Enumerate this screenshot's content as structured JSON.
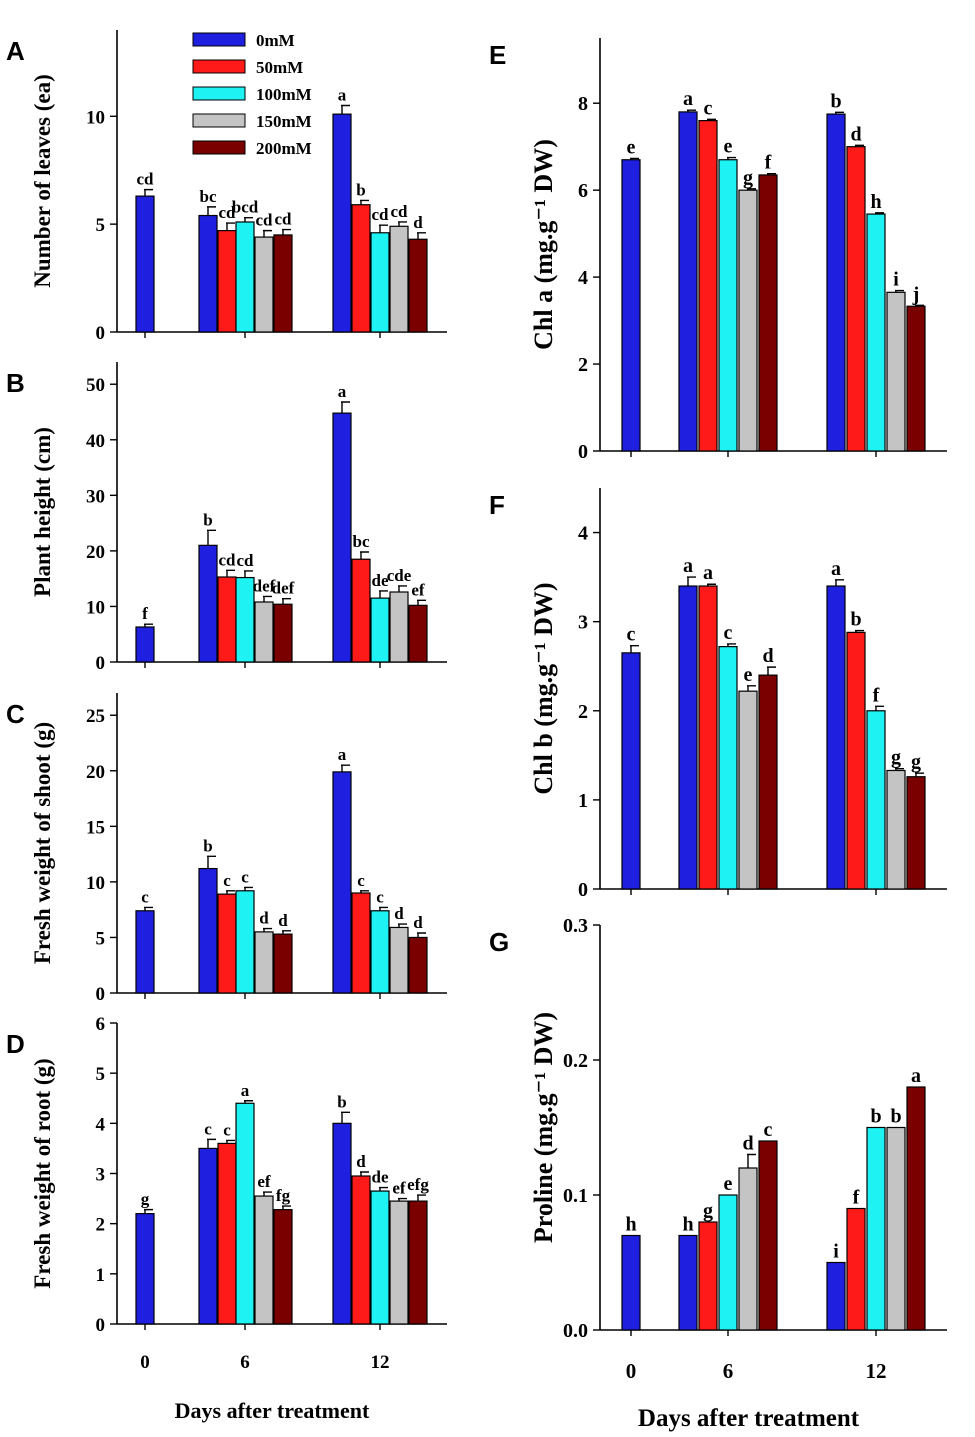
{
  "figure": {
    "series_colors": [
      "#1f1fe0",
      "#ff1a1a",
      "#1ef2f2",
      "#c4c4c4",
      "#7a0000"
    ],
    "legend": [
      "0mM",
      "50mM",
      "100mM",
      "150mM",
      "200mM"
    ]
  },
  "chart_data": [
    {
      "panel": "A",
      "type": "bar",
      "ylabel": "Number of leaves (ea)",
      "xlabel": "",
      "ylim": [
        0,
        14
      ],
      "yticks": [
        0,
        5,
        10
      ],
      "categories": [
        "0",
        "6",
        "12"
      ],
      "series": [
        {
          "name": "0mM",
          "values": [
            6.3,
            5.4,
            10.1
          ],
          "errors": [
            0.3,
            0.4,
            0.4
          ],
          "letters": [
            "cd",
            "bc",
            "a"
          ]
        },
        {
          "name": "50mM",
          "values": [
            null,
            4.7,
            5.9
          ],
          "errors": [
            null,
            0.35,
            0.2
          ],
          "letters": [
            null,
            "cd",
            "b"
          ]
        },
        {
          "name": "100mM",
          "values": [
            null,
            5.1,
            4.6
          ],
          "errors": [
            null,
            0.2,
            0.35
          ],
          "letters": [
            null,
            "bcd",
            "cd"
          ]
        },
        {
          "name": "150mM",
          "values": [
            null,
            4.4,
            4.9
          ],
          "errors": [
            null,
            0.3,
            0.2
          ],
          "letters": [
            null,
            "cd",
            "cd"
          ]
        },
        {
          "name": "200mM",
          "values": [
            null,
            4.5,
            4.3
          ],
          "errors": [
            null,
            0.25,
            0.3
          ],
          "letters": [
            null,
            "cd",
            "d"
          ]
        }
      ]
    },
    {
      "panel": "B",
      "type": "bar",
      "ylabel": "Plant height (cm)",
      "xlabel": "",
      "ylim": [
        0,
        54
      ],
      "yticks": [
        0,
        10,
        20,
        30,
        40,
        50
      ],
      "categories": [
        "0",
        "6",
        "12"
      ],
      "series": [
        {
          "name": "0mM",
          "values": [
            6.3,
            21.0,
            44.8
          ],
          "errors": [
            0.5,
            2.7,
            2.0
          ],
          "letters": [
            "f",
            "b",
            "a"
          ]
        },
        {
          "name": "50mM",
          "values": [
            null,
            15.3,
            18.5
          ],
          "errors": [
            null,
            1.2,
            1.3
          ],
          "letters": [
            null,
            "cd",
            "bc"
          ]
        },
        {
          "name": "100mM",
          "values": [
            null,
            15.2,
            11.5
          ],
          "errors": [
            null,
            1.2,
            1.3
          ],
          "letters": [
            null,
            "cd",
            "de"
          ]
        },
        {
          "name": "150mM",
          "values": [
            null,
            10.8,
            12.6
          ],
          "errors": [
            null,
            1.0,
            1.1
          ],
          "letters": [
            null,
            "def",
            "cde"
          ]
        },
        {
          "name": "200mM",
          "values": [
            null,
            10.4,
            10.2
          ],
          "errors": [
            null,
            1.0,
            0.9
          ],
          "letters": [
            null,
            "def",
            "ef"
          ]
        }
      ]
    },
    {
      "panel": "C",
      "type": "bar",
      "ylabel": "Fresh weight of shoot (g)",
      "xlabel": "",
      "ylim": [
        0,
        27
      ],
      "yticks": [
        0,
        5,
        10,
        15,
        20,
        25
      ],
      "categories": [
        "0",
        "6",
        "12"
      ],
      "series": [
        {
          "name": "0mM",
          "values": [
            7.4,
            11.2,
            19.9
          ],
          "errors": [
            0.3,
            1.1,
            0.6
          ],
          "letters": [
            "c",
            "b",
            "a"
          ]
        },
        {
          "name": "50mM",
          "values": [
            null,
            8.9,
            9.0
          ],
          "errors": [
            null,
            0.3,
            0.2
          ],
          "letters": [
            null,
            "c",
            "c"
          ]
        },
        {
          "name": "100mM",
          "values": [
            null,
            9.2,
            7.4
          ],
          "errors": [
            null,
            0.3,
            0.3
          ],
          "letters": [
            null,
            "c",
            "c"
          ]
        },
        {
          "name": "150mM",
          "values": [
            null,
            5.5,
            5.9
          ],
          "errors": [
            null,
            0.3,
            0.3
          ],
          "letters": [
            null,
            "d",
            "d"
          ]
        },
        {
          "name": "200mM",
          "values": [
            null,
            5.3,
            5.0
          ],
          "errors": [
            null,
            0.3,
            0.4
          ],
          "letters": [
            null,
            "d",
            "d"
          ]
        }
      ]
    },
    {
      "panel": "D",
      "type": "bar",
      "ylabel": "Fresh weight of root (g)",
      "xlabel": "Days after treatment",
      "ylim": [
        0,
        6
      ],
      "yticks": [
        0,
        1,
        2,
        3,
        4,
        5,
        6
      ],
      "categories": [
        "0",
        "6",
        "12"
      ],
      "series": [
        {
          "name": "0mM",
          "values": [
            2.2,
            3.5,
            4.0
          ],
          "errors": [
            0.08,
            0.18,
            0.22
          ],
          "letters": [
            "g",
            "c",
            "b"
          ]
        },
        {
          "name": "50mM",
          "values": [
            null,
            3.6,
            2.95
          ],
          "errors": [
            null,
            0.06,
            0.08
          ],
          "letters": [
            null,
            "c",
            "d"
          ]
        },
        {
          "name": "100mM",
          "values": [
            null,
            4.4,
            2.65
          ],
          "errors": [
            null,
            0.05,
            0.07
          ],
          "letters": [
            null,
            "a",
            "de"
          ]
        },
        {
          "name": "150mM",
          "values": [
            null,
            2.55,
            2.45
          ],
          "errors": [
            null,
            0.08,
            0.05
          ],
          "letters": [
            null,
            "ef",
            "ef"
          ]
        },
        {
          "name": "200mM",
          "values": [
            null,
            2.28,
            2.45
          ],
          "errors": [
            null,
            0.07,
            0.12
          ],
          "letters": [
            null,
            "fg",
            "efg"
          ]
        }
      ]
    },
    {
      "panel": "E",
      "type": "bar",
      "ylabel": "Chl a (mg.g⁻¹ DW)",
      "xlabel": "",
      "ylim": [
        0,
        9.5
      ],
      "yticks": [
        0,
        2,
        4,
        6,
        8
      ],
      "categories": [
        "0",
        "6",
        "12"
      ],
      "series": [
        {
          "name": "0mM",
          "values": [
            6.7,
            7.8,
            7.75
          ],
          "errors": [
            0.03,
            0.04,
            0.04
          ],
          "letters": [
            "e",
            "a",
            "b"
          ]
        },
        {
          "name": "50mM",
          "values": [
            null,
            7.6,
            7.0
          ],
          "errors": [
            null,
            0.03,
            0.03
          ],
          "letters": [
            null,
            "c",
            "d"
          ]
        },
        {
          "name": "100mM",
          "values": [
            null,
            6.7,
            5.45
          ],
          "errors": [
            null,
            0.05,
            0.03
          ],
          "letters": [
            null,
            "e",
            "h"
          ]
        },
        {
          "name": "150mM",
          "values": [
            null,
            6.0,
            3.65
          ],
          "errors": [
            null,
            0.03,
            0.04
          ],
          "letters": [
            null,
            "g",
            "i"
          ]
        },
        {
          "name": "200mM",
          "values": [
            null,
            6.35,
            3.33
          ],
          "errors": [
            null,
            0.03,
            0.02
          ],
          "letters": [
            null,
            "f",
            "j"
          ]
        }
      ]
    },
    {
      "panel": "F",
      "type": "bar",
      "ylabel": "Chl b (mg.g⁻¹ DW)",
      "xlabel": "",
      "ylim": [
        0,
        4.5
      ],
      "yticks": [
        0,
        1,
        2,
        3,
        4
      ],
      "categories": [
        "0",
        "6",
        "12"
      ],
      "series": [
        {
          "name": "0mM",
          "values": [
            2.65,
            3.4,
            3.4
          ],
          "errors": [
            0.08,
            0.1,
            0.07
          ],
          "letters": [
            "c",
            "a",
            "a"
          ]
        },
        {
          "name": "50mM",
          "values": [
            null,
            3.4,
            2.88
          ],
          "errors": [
            null,
            0.02,
            0.02
          ],
          "letters": [
            null,
            "a",
            "b"
          ]
        },
        {
          "name": "100mM",
          "values": [
            null,
            2.72,
            2.0
          ],
          "errors": [
            null,
            0.03,
            0.05
          ],
          "letters": [
            null,
            "c",
            "f"
          ]
        },
        {
          "name": "150mM",
          "values": [
            null,
            2.22,
            1.33
          ],
          "errors": [
            null,
            0.06,
            0.02
          ],
          "letters": [
            null,
            "e",
            "g"
          ]
        },
        {
          "name": "200mM",
          "values": [
            null,
            2.4,
            1.26
          ],
          "errors": [
            null,
            0.09,
            0.04
          ],
          "letters": [
            null,
            "d",
            "g"
          ]
        }
      ]
    },
    {
      "panel": "G",
      "type": "bar",
      "ylabel": "Proline (mg.g⁻¹ DW)",
      "xlabel": "Days after treatment",
      "ylim": [
        0,
        0.3
      ],
      "yticks": [
        0.0,
        0.1,
        0.2,
        0.3
      ],
      "categories": [
        "0",
        "6",
        "12"
      ],
      "series": [
        {
          "name": "0mM",
          "values": [
            0.07,
            0.07,
            0.05
          ],
          "errors": [
            0,
            0,
            0
          ],
          "letters": [
            "h",
            "h",
            "i"
          ]
        },
        {
          "name": "50mM",
          "values": [
            null,
            0.08,
            0.09
          ],
          "errors": [
            null,
            0,
            0
          ],
          "letters": [
            null,
            "g",
            "f"
          ]
        },
        {
          "name": "100mM",
          "values": [
            null,
            0.1,
            0.15
          ],
          "errors": [
            null,
            0,
            0
          ],
          "letters": [
            null,
            "e",
            "b"
          ]
        },
        {
          "name": "150mM",
          "values": [
            null,
            0.12,
            0.15
          ],
          "errors": [
            null,
            0.01,
            0
          ],
          "letters": [
            null,
            "d",
            "b"
          ]
        },
        {
          "name": "200mM",
          "values": [
            null,
            0.14,
            0.18
          ],
          "errors": [
            null,
            0,
            0
          ],
          "letters": [
            null,
            "c",
            "a"
          ]
        }
      ]
    }
  ]
}
